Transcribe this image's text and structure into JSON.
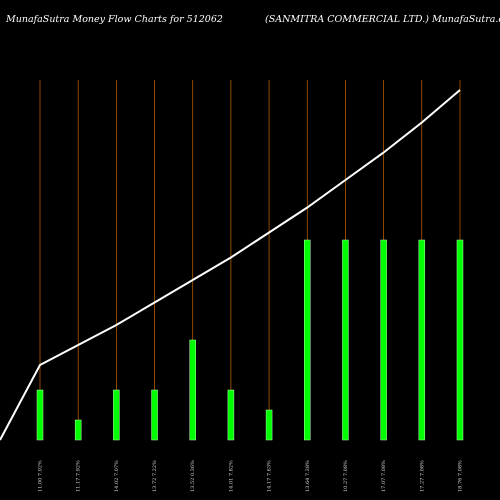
{
  "chart_data": {
    "type": "bar",
    "title": "MunafaSutra  Money Flow  Charts for 512062",
    "subtitle": "(SANMITRA COMMERCIAL  LTD.) MunafaSutra.com",
    "categories": [
      "11.00 7.02%",
      "11.17 7.92%",
      "14.02 7.07%",
      "13.72 7.22%",
      "13.52 0.36%",
      "14.01 7.82%",
      "14.17 7.63%",
      "13.64 7.38%",
      "10.27 7.08%",
      "17.07 7.08%",
      "17.27 7.08%",
      "18.76 7.08%"
    ],
    "values": [
      1.0,
      0.4,
      1.0,
      1.0,
      2.0,
      1.0,
      0.6,
      4.0,
      4.0,
      4.0,
      4.0,
      4.0
    ],
    "line": [
      1.5,
      1.9,
      2.3,
      2.75,
      3.2,
      3.65,
      4.15,
      4.65,
      5.2,
      5.75,
      6.35,
      7.0
    ],
    "line_start": 0.0,
    "ylim": [
      0,
      8
    ],
    "colors": {
      "background": "#000000",
      "bar": "#00ff00",
      "bar_edge": "#b8ffb0",
      "line": "#ffffff",
      "gridline": "#cc6600"
    }
  }
}
